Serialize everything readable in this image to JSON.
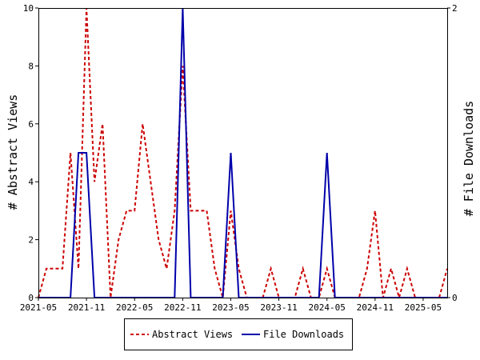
{
  "chart_data": {
    "type": "line",
    "x_ticks": [
      "2021-05",
      "2021-11",
      "2022-05",
      "2022-11",
      "2023-05",
      "2023-11",
      "2024-05",
      "2024-11",
      "2025-05"
    ],
    "x_tick_months": [
      0,
      6,
      12,
      18,
      24,
      30,
      36,
      42,
      48
    ],
    "x_range_months": [
      0,
      51
    ],
    "ylabel_left": "# Abstract Views",
    "ylabel_right": "# File Downloads",
    "ylim_left": [
      0,
      10
    ],
    "ylim_right": [
      0,
      2
    ],
    "y_ticks_left": [
      "0",
      "2",
      "4",
      "6",
      "8",
      "10"
    ],
    "y_ticks_right": [
      "0",
      "2"
    ],
    "grid": false,
    "legend_position": "bottom",
    "series": [
      {
        "name": "Abstract Views",
        "axis": "left",
        "color": "#cc0000",
        "style": "dashed",
        "months": [
          0,
          1,
          2,
          3,
          4,
          5,
          6,
          7,
          8,
          9,
          10,
          11,
          12,
          13,
          14,
          15,
          16,
          17,
          18,
          19,
          20,
          21,
          22,
          23,
          24,
          25,
          26,
          27,
          28,
          29,
          30,
          31,
          32,
          33,
          34,
          35,
          36,
          37,
          38,
          39,
          40,
          41,
          42,
          43,
          44,
          45,
          46,
          47,
          48,
          49,
          50,
          51
        ],
        "values": [
          0,
          1,
          1,
          1,
          5,
          1,
          10,
          4,
          6,
          0,
          2,
          3,
          3,
          6,
          4,
          2,
          1,
          3,
          8,
          3,
          3,
          3,
          1,
          0,
          3,
          1,
          0,
          0,
          0,
          1,
          0,
          0,
          0,
          1,
          0,
          0,
          1,
          0,
          0,
          0,
          0,
          1,
          3,
          0,
          1,
          0,
          1,
          0,
          0,
          0,
          0,
          1
        ]
      },
      {
        "name": "File Downloads",
        "axis": "right",
        "color": "#0000aa",
        "style": "solid",
        "months": [
          0,
          1,
          2,
          3,
          4,
          5,
          6,
          7,
          8,
          9,
          10,
          11,
          12,
          13,
          14,
          15,
          16,
          17,
          18,
          19,
          20,
          21,
          22,
          23,
          24,
          25,
          26,
          27,
          28,
          29,
          30,
          31,
          32,
          33,
          34,
          35,
          36,
          37,
          38,
          39,
          40,
          41,
          42,
          43,
          44,
          45,
          46,
          47,
          48,
          49,
          50,
          51
        ],
        "values": [
          0,
          0,
          0,
          0,
          0,
          1,
          1,
          0,
          0,
          0,
          0,
          0,
          0,
          0,
          0,
          0,
          0,
          0,
          2,
          0,
          0,
          0,
          0,
          0,
          1,
          0,
          0,
          0,
          0,
          0,
          0,
          0,
          0,
          0,
          0,
          0,
          1,
          0,
          0,
          0,
          0,
          0,
          0,
          0,
          0,
          0,
          0,
          0,
          0,
          0,
          0,
          0
        ]
      }
    ]
  }
}
